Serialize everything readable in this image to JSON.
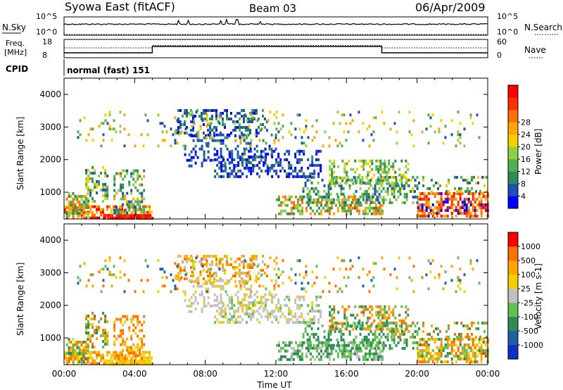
{
  "header": {
    "station": "Syowa East (fitACF)",
    "beam": "Beam 03",
    "date": "06/Apr/2009"
  },
  "panels": {
    "nsky": {
      "left_label": "N.Sky",
      "left_ticks": [
        "10^5",
        "10^0"
      ],
      "right_ticks": [
        "10^5",
        "10^0"
      ],
      "right_label": "N.Search"
    },
    "freq": {
      "left_label_1": "Freq.",
      "left_label_2": "[MHz]",
      "left_ticks": [
        "18",
        "8"
      ],
      "right_ticks": [
        "60",
        "0"
      ],
      "right_label": "Nave"
    },
    "cpid": {
      "label": "CPID",
      "mode": "normal (fast) 151"
    }
  },
  "chart_data": [
    {
      "type": "heatmap",
      "name": "power",
      "ylabel": "Slant Range [km]",
      "xlabel": "",
      "x_ticks": [
        "00:00",
        "04:00",
        "08:00",
        "12:00",
        "16:00",
        "20:00",
        "00:00"
      ],
      "xlim_hours": [
        0,
        24
      ],
      "y_ticks": [
        1000,
        2000,
        3000,
        4000
      ],
      "ylim_km": [
        180,
        4500
      ],
      "colorbar": {
        "label": "Power [dB]",
        "ticks": [
          "4",
          "8",
          "12",
          "16",
          "20",
          "24",
          "28"
        ],
        "colors": [
          "#0000ff",
          "#1e4fb4",
          "#2e8b57",
          "#4fb04f",
          "#90d040",
          "#f5d000",
          "#ffa500",
          "#ff7000",
          "#ff3000",
          "#ff0000"
        ]
      }
    },
    {
      "type": "heatmap",
      "name": "velocity",
      "ylabel": "Slant Range [km]",
      "xlabel": "Time UT",
      "x_ticks": [
        "00:00",
        "04:00",
        "08:00",
        "12:00",
        "16:00",
        "20:00",
        "00:00"
      ],
      "xlim_hours": [
        0,
        24
      ],
      "y_ticks": [
        1000,
        2000,
        3000,
        4000
      ],
      "ylim_km": [
        180,
        4500
      ],
      "colorbar": {
        "label": "Velocity [m s-1]",
        "ticks": [
          "1000",
          "500",
          "100",
          "25",
          "-25",
          "-100",
          "-500",
          "-1000"
        ],
        "colors": [
          "#1030c0",
          "#2060a0",
          "#2e8b57",
          "#60c050",
          "#c0c0c0",
          "#f5d000",
          "#ffa500",
          "#ff7000",
          "#ff0000"
        ]
      }
    }
  ]
}
